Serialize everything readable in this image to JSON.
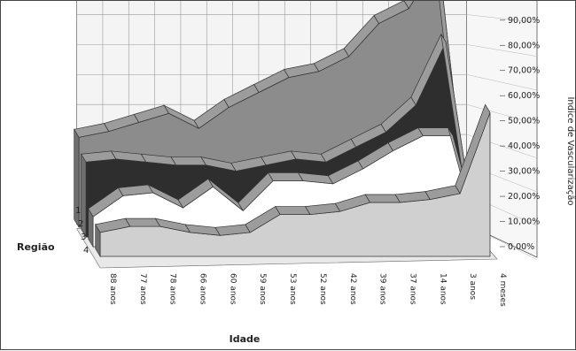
{
  "chart_data": {
    "type": "area",
    "variant": "3d-ribbon",
    "x_title": "Idade",
    "z_title": "Região",
    "y_title": "Índice de Vascularização",
    "categories": [
      "88 anos",
      "77 anos",
      "78 anos",
      "66 anos",
      "60 anos",
      "59 anos",
      "53 anos",
      "52 anos",
      "42 anos",
      "39 anos",
      "37 anos",
      "14 anos",
      "3 anos",
      "4 meses"
    ],
    "ylim": [
      0,
      0.9
    ],
    "y_ticks": [
      "0,00%",
      "10,00%",
      "20,00%",
      "30,00%",
      "40,00%",
      "50,00%",
      "60,00%",
      "70,00%",
      "80,00%",
      "90,00%"
    ],
    "grid": true,
    "series": [
      {
        "name": "1",
        "color": "#8c8c8c",
        "values": [
          0.3,
          0.32,
          0.35,
          0.38,
          0.33,
          0.4,
          0.45,
          0.5,
          0.52,
          0.57,
          0.68,
          0.73,
          0.89,
          0.0
        ]
      },
      {
        "name": "2",
        "color": "#2e2e2e",
        "values": [
          0.25,
          0.26,
          0.25,
          0.24,
          0.24,
          0.22,
          0.24,
          0.26,
          0.25,
          0.3,
          0.35,
          0.44,
          0.65,
          0.0
        ]
      },
      {
        "name": "3",
        "color": "#ffffff",
        "values": [
          0.1,
          0.17,
          0.18,
          0.13,
          0.2,
          0.12,
          0.22,
          0.22,
          0.21,
          0.26,
          0.32,
          0.37,
          0.37,
          0.0
        ]
      },
      {
        "name": "4",
        "color": "#d0d0d0",
        "values": [
          0.08,
          0.1,
          0.1,
          0.08,
          0.07,
          0.08,
          0.14,
          0.14,
          0.15,
          0.18,
          0.18,
          0.19,
          0.21,
          0.48
        ]
      }
    ]
  }
}
